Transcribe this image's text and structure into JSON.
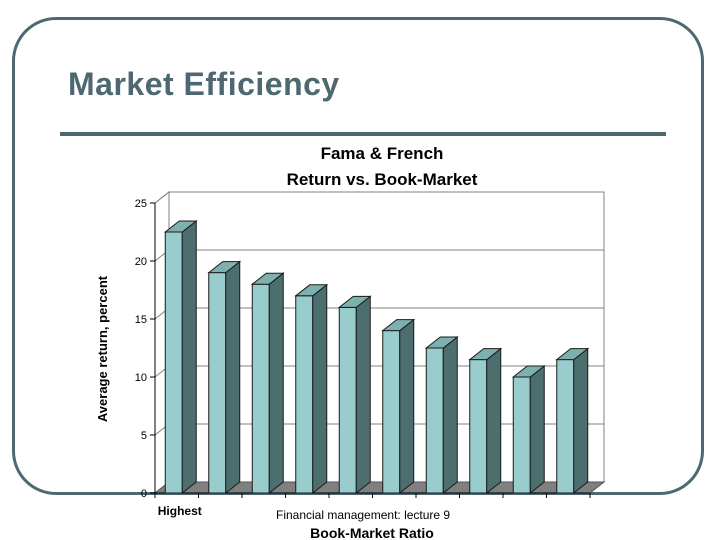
{
  "slide": {
    "title": "Market Efficiency",
    "footer": "Financial management: lecture 9"
  },
  "colors": {
    "frame": "#4d6870",
    "bar_front": "#99cccc",
    "bar_side": "#4d6e6e",
    "bar_top": "#7fb0b0",
    "floor": "#808080"
  },
  "chart_data": {
    "type": "bar",
    "title": "Fama & French",
    "subtitle": "Return vs. Book-Market",
    "xlabel": "Book-Market Ratio",
    "ylabel": "Average return, percent",
    "categories": [
      "Highest",
      "",
      "",
      "",
      "",
      "",
      "",
      "",
      "",
      ""
    ],
    "values": [
      22.5,
      19.0,
      18.0,
      17.0,
      16.0,
      14.0,
      12.5,
      11.5,
      10.0,
      11.5
    ],
    "yticks": [
      0,
      5,
      10,
      15,
      20,
      25
    ],
    "ylim": [
      0,
      25
    ],
    "grid": true,
    "style": "3d"
  }
}
